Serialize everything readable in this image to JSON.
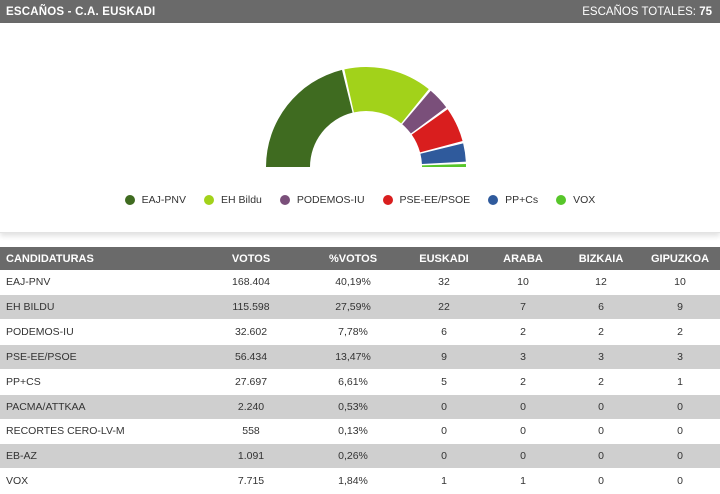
{
  "header": {
    "title": "ESCAÑOS - C.A. EUSKADI",
    "total_label": "ESCAÑOS TOTALES:",
    "total_value": "75"
  },
  "chart_data": {
    "type": "pie",
    "subtype": "parliament-hemicycle",
    "categories": [
      "EAJ-PNV",
      "EH Bildu",
      "PODEMOS-IU",
      "PSE-EE/PSOE",
      "PP+Cs",
      "VOX"
    ],
    "values": [
      32,
      22,
      6,
      9,
      5,
      1
    ],
    "colors": [
      "#3f6b20",
      "#a2d21a",
      "#7a4f7a",
      "#d91e1e",
      "#2f5a9c",
      "#57c62a"
    ],
    "total": 75,
    "legend_position": "bottom"
  },
  "legend": [
    {
      "label": "EAJ-PNV",
      "color": "#3f6b20"
    },
    {
      "label": "EH Bildu",
      "color": "#a2d21a"
    },
    {
      "label": "PODEMOS-IU",
      "color": "#7a4f7a"
    },
    {
      "label": "PSE-EE/PSOE",
      "color": "#d91e1e"
    },
    {
      "label": "PP+Cs",
      "color": "#2f5a9c"
    },
    {
      "label": "VOX",
      "color": "#57c62a"
    }
  ],
  "table": {
    "headers": [
      "CANDIDATURAS",
      "VOTOS",
      "%VOTOS",
      "EUSKADI",
      "ARABA",
      "BIZKAIA",
      "GIPUZKOA"
    ],
    "rows": [
      [
        "EAJ-PNV",
        "168.404",
        "40,19%",
        "32",
        "10",
        "12",
        "10"
      ],
      [
        "EH BILDU",
        "115.598",
        "27,59%",
        "22",
        "7",
        "6",
        "9"
      ],
      [
        "PODEMOS-IU",
        "32.602",
        "7,78%",
        "6",
        "2",
        "2",
        "2"
      ],
      [
        "PSE-EE/PSOE",
        "56.434",
        "13,47%",
        "9",
        "3",
        "3",
        "3"
      ],
      [
        "PP+CS",
        "27.697",
        "6,61%",
        "5",
        "2",
        "2",
        "1"
      ],
      [
        "PACMA/ATTKAA",
        "2.240",
        "0,53%",
        "0",
        "0",
        "0",
        "0"
      ],
      [
        "RECORTES CERO-LV-M",
        "558",
        "0,13%",
        "0",
        "0",
        "0",
        "0"
      ],
      [
        "EB-AZ",
        "1.091",
        "0,26%",
        "0",
        "0",
        "0",
        "0"
      ],
      [
        "VOX",
        "7.715",
        "1,84%",
        "1",
        "1",
        "0",
        "0"
      ]
    ]
  }
}
